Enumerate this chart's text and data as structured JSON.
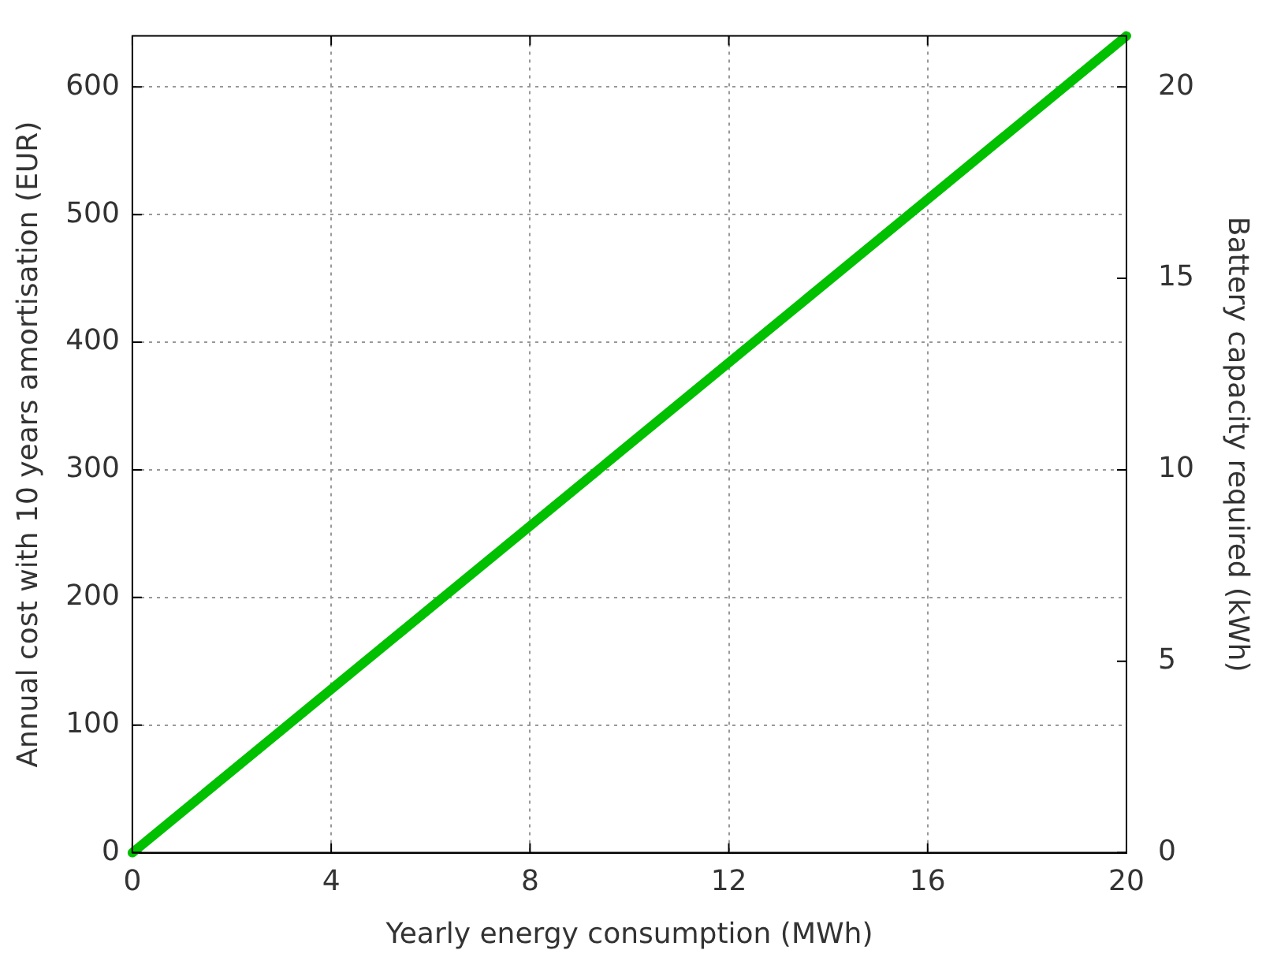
{
  "chart_data": {
    "type": "line",
    "xlabel": "Yearly energy consumption (MWh)",
    "ylabel": "Annual cost with 10 years amortisation (EUR)",
    "y2label": "Battery capacity required (kWh)",
    "x": [
      0,
      20
    ],
    "series": [
      {
        "color": "#00c000",
        "values": [
          0,
          640
        ]
      }
    ],
    "xlim": [
      0,
      20
    ],
    "xticks": [
      0,
      4,
      8,
      12,
      16,
      20
    ],
    "ylim": [
      0,
      640
    ],
    "yticks": [
      0,
      100,
      200,
      300,
      400,
      500,
      600
    ],
    "y2lim": [
      0,
      21.33
    ],
    "y2ticks": [
      0,
      5,
      10,
      15,
      20
    ],
    "grid": true,
    "legend": false,
    "marker": "none",
    "line_style": "solid"
  }
}
